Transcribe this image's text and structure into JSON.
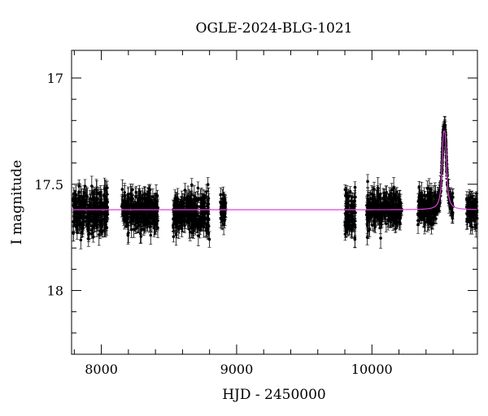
{
  "chart_data": {
    "type": "scatter",
    "title": "OGLE-2024-BLG-1021",
    "xlabel": "HJD - 2450000",
    "ylabel": "I magnitude",
    "xlim": [
      7780,
      10780
    ],
    "ylim": [
      18.3,
      16.87
    ],
    "y_inverted": true,
    "x_ticks": [
      8000,
      9000,
      10000
    ],
    "x_tick_labels": [
      "8000",
      "9000",
      "10000"
    ],
    "y_ticks": [
      17,
      17.5,
      18
    ],
    "y_tick_labels": [
      "17",
      "17.5",
      "18"
    ],
    "grid": false,
    "legend": "none",
    "baseline_magnitude": 17.62,
    "seasons": [
      {
        "start": 7790,
        "end": 8050,
        "mean": 17.63,
        "scatter": 0.05
      },
      {
        "start": 8150,
        "end": 8420,
        "mean": 17.62,
        "scatter": 0.045
      },
      {
        "start": 8530,
        "end": 8800,
        "mean": 17.64,
        "scatter": 0.05
      },
      {
        "start": 8880,
        "end": 8920,
        "mean": 17.62,
        "scatter": 0.03
      },
      {
        "start": 9800,
        "end": 9880,
        "mean": 17.64,
        "scatter": 0.05
      },
      {
        "start": 9960,
        "end": 10220,
        "mean": 17.62,
        "scatter": 0.04
      },
      {
        "start": 10340,
        "end": 10600,
        "mean": 17.61,
        "scatter": 0.04
      },
      {
        "start": 10700,
        "end": 10780,
        "mean": 17.62,
        "scatter": 0.03
      }
    ],
    "event": {
      "t0": 10535,
      "peak_magnitude": 17.25,
      "width_days": 14
    },
    "series": [
      {
        "type": "scatter",
        "color": "#000000"
      },
      {
        "type": "line",
        "color": "#e040e0"
      }
    ]
  }
}
